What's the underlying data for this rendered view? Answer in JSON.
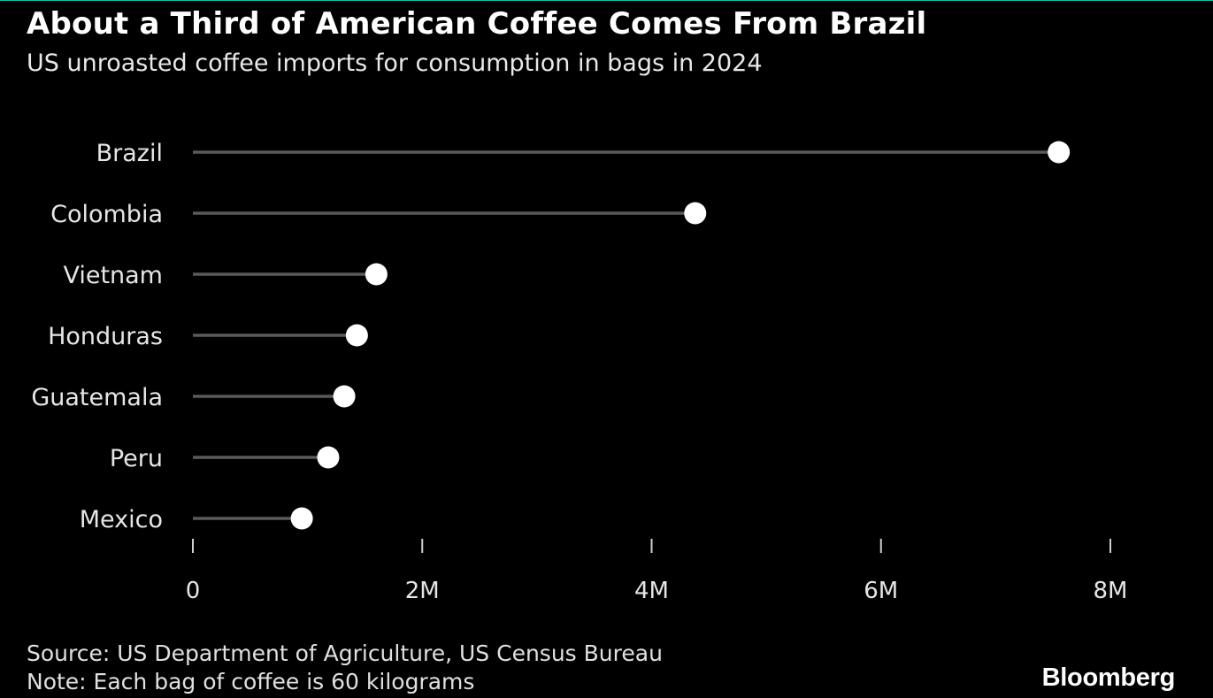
{
  "header": {
    "title": "About a Third of American Coffee Comes From Brazil",
    "subtitle": "US unroasted coffee imports for consumption in bags in 2024"
  },
  "chart_data": {
    "type": "lollipop",
    "title": "About a Third of American Coffee Comes From Brazil",
    "subtitle": "US unroasted coffee imports for consumption in bags in 2024",
    "categories": [
      "Brazil",
      "Colombia",
      "Vietnam",
      "Honduras",
      "Guatemala",
      "Peru",
      "Mexico"
    ],
    "values": [
      7550000,
      4380000,
      1600000,
      1430000,
      1320000,
      1180000,
      950000
    ],
    "xlim": [
      0,
      8000000
    ],
    "ticks": [
      0,
      2000000,
      4000000,
      6000000,
      8000000
    ],
    "tick_labels": [
      "0",
      "2M",
      "4M",
      "6M",
      "8M"
    ],
    "xlabel": "",
    "ylabel": "",
    "grid": false,
    "colors": {
      "background": "#000000",
      "stem": "#5a5a5a",
      "dot": "#ffffff",
      "axis_tick": "#cfcfcf",
      "text": "#ffffff"
    }
  },
  "footer": {
    "source": "Source: US Department of Agriculture, US Census Bureau",
    "note": "Note: Each bag of coffee is 60 kilograms",
    "brand": "Bloomberg"
  }
}
